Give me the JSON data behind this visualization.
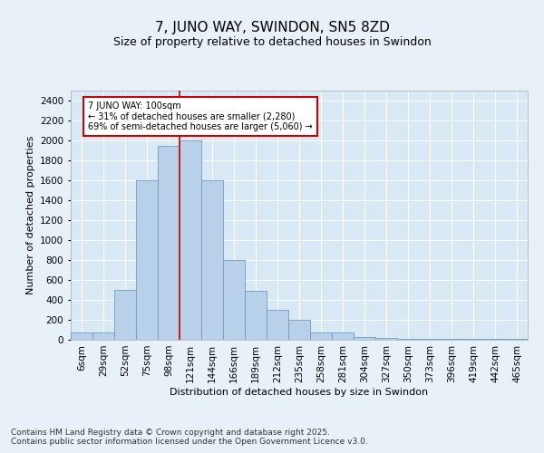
{
  "title": "7, JUNO WAY, SWINDON, SN5 8ZD",
  "subtitle": "Size of property relative to detached houses in Swindon",
  "xlabel": "Distribution of detached houses by size in Swindon",
  "ylabel": "Number of detached properties",
  "categories": [
    "6sqm",
    "29sqm",
    "52sqm",
    "75sqm",
    "98sqm",
    "121sqm",
    "144sqm",
    "166sqm",
    "189sqm",
    "212sqm",
    "235sqm",
    "258sqm",
    "281sqm",
    "304sqm",
    "327sqm",
    "350sqm",
    "373sqm",
    "396sqm",
    "419sqm",
    "442sqm",
    "465sqm"
  ],
  "values": [
    70,
    70,
    500,
    1600,
    1950,
    2000,
    1600,
    800,
    490,
    300,
    200,
    75,
    75,
    30,
    20,
    10,
    10,
    5,
    5,
    5,
    5
  ],
  "bar_color": "#b8d0e8",
  "bar_edge_color": "#6b9ec8",
  "vline_color": "#cc0000",
  "vline_x_idx": 4.5,
  "annotation_text": "7 JUNO WAY: 100sqm\n← 31% of detached houses are smaller (2,280)\n69% of semi-detached houses are larger (5,060) →",
  "annotation_box_color": "white",
  "annotation_box_edge": "#cc0000",
  "ylim": [
    0,
    2500
  ],
  "yticks": [
    0,
    200,
    400,
    600,
    800,
    1000,
    1200,
    1400,
    1600,
    1800,
    2000,
    2200,
    2400
  ],
  "bg_color": "#e8f0f8",
  "plot_bg_color": "#d8e8f4",
  "grid_color": "#ffffff",
  "footer": "Contains HM Land Registry data © Crown copyright and database right 2025.\nContains public sector information licensed under the Open Government Licence v3.0.",
  "title_fontsize": 11,
  "subtitle_fontsize": 9,
  "xlabel_fontsize": 8,
  "ylabel_fontsize": 8,
  "tick_fontsize": 7.5,
  "footer_fontsize": 6.5,
  "annotation_fontsize": 7
}
